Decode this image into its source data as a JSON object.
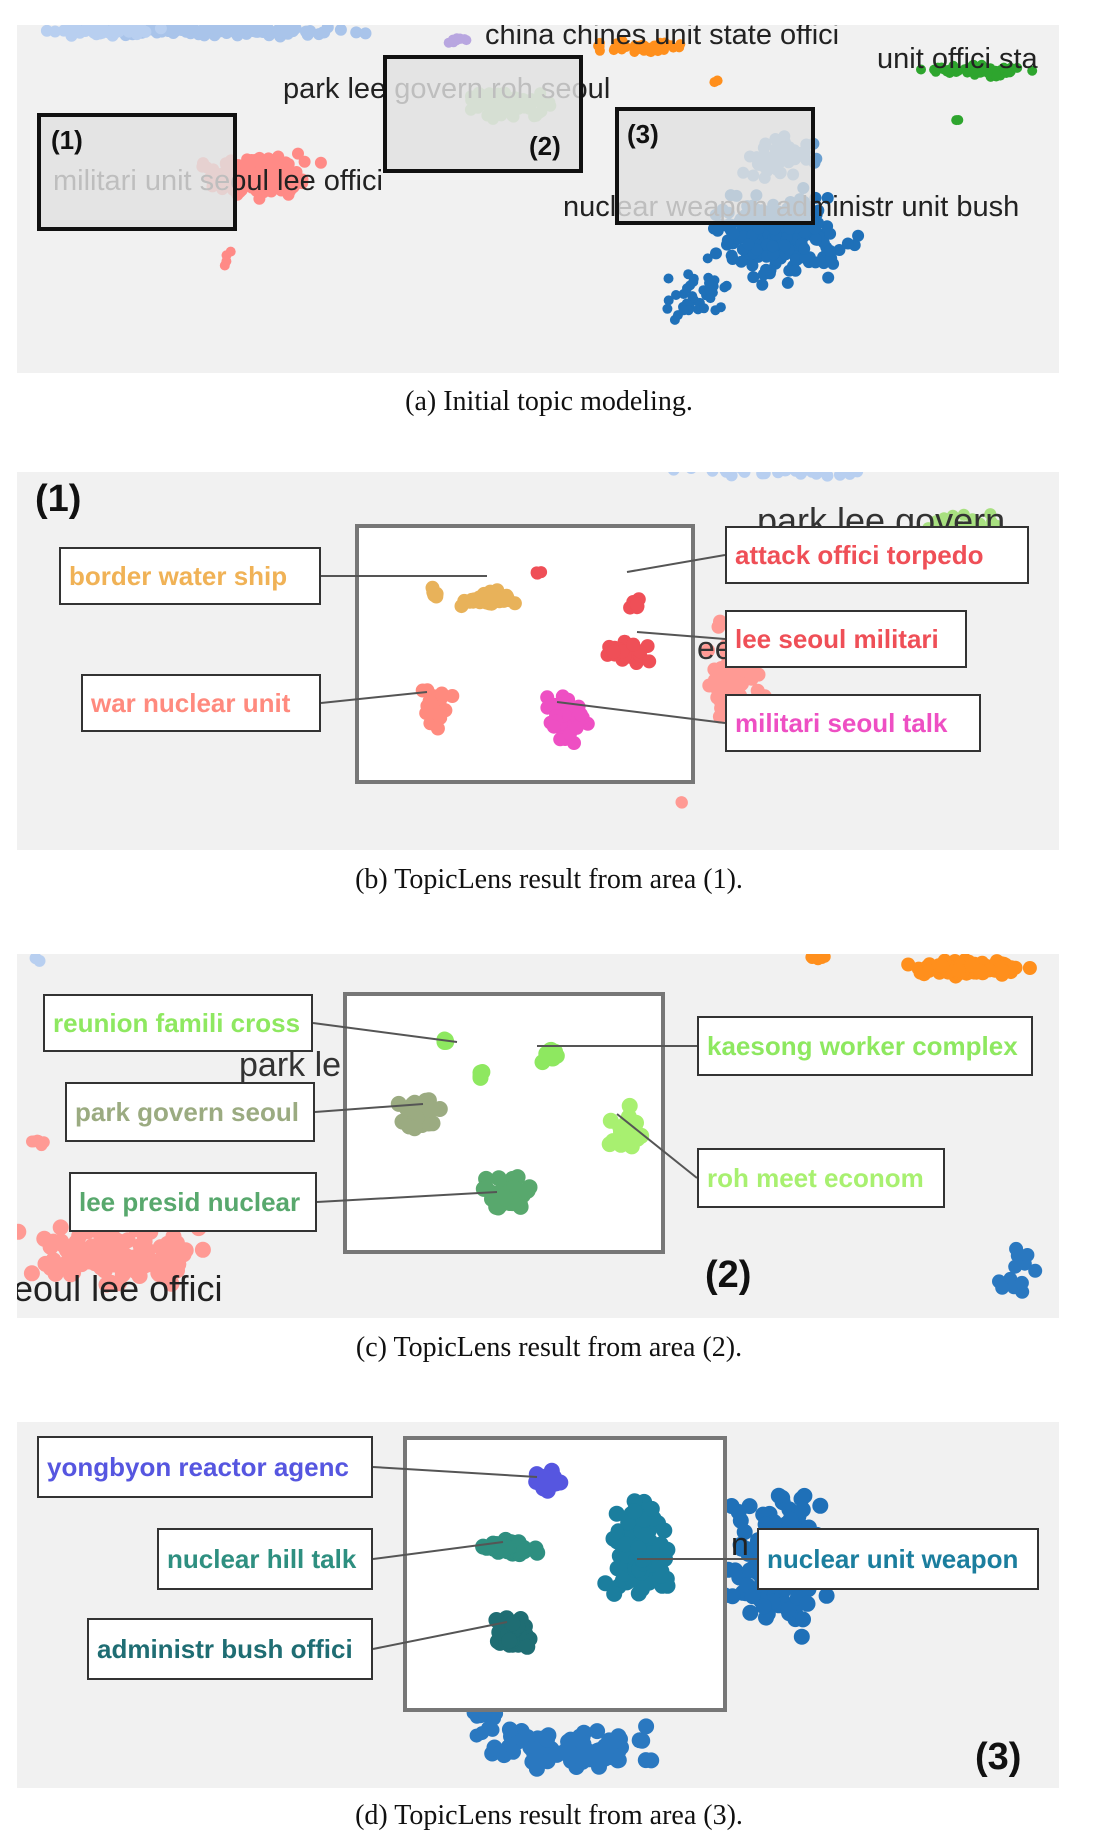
{
  "panels": {
    "a": {
      "caption": "(a) Initial topic modeling.",
      "topic_labels": {
        "china": "china chines unit state offici",
        "unit": "unit offici sta",
        "park": "park lee govern roh seoul",
        "militari": "militari unit seoul lee offici",
        "nuclear": "nuclear weapon administr unit bush"
      },
      "areas": [
        {
          "label": "(1)"
        },
        {
          "label": "(2)"
        },
        {
          "label": "(3)"
        }
      ]
    },
    "b": {
      "caption": "(b) TopicLens result from area (1).",
      "area_label": "(1)",
      "bg_text": [
        "park lee govern",
        "ee"
      ],
      "topics": [
        {
          "label": "border water ship",
          "color": "#f0b256"
        },
        {
          "label": "war nuclear unit",
          "color": "#ff8a7e"
        },
        {
          "label": "attack offici torpedo",
          "color": "#ef4f57"
        },
        {
          "label": "lee seoul militari",
          "color": "#ef4f57"
        },
        {
          "label": "militari seoul talk",
          "color": "#ee4fc3"
        }
      ]
    },
    "c": {
      "caption": "(c) TopicLens result from area (2).",
      "area_label": "(2)",
      "bg_text": [
        "park le",
        "eoul lee offici"
      ],
      "topics": [
        {
          "label": "reunion famili cross",
          "color": "#8ee860"
        },
        {
          "label": "park govern seoul",
          "color": "#9bab81"
        },
        {
          "label": "lee presid nuclear",
          "color": "#58a86d"
        },
        {
          "label": "kaesong worker complex",
          "color": "#8ee860"
        },
        {
          "label": "roh meet econom",
          "color": "#a8f070"
        }
      ]
    },
    "d": {
      "caption": "(d) TopicLens result from area (3).",
      "area_label": "(3)",
      "bg_text": [
        "n"
      ],
      "topics": [
        {
          "label": "yongbyon reactor agenc",
          "color": "#5656e0"
        },
        {
          "label": "nuclear hill talk",
          "color": "#2e8f80"
        },
        {
          "label": "administr bush offici",
          "color": "#1f6d73"
        },
        {
          "label": "nuclear unit weapon",
          "color": "#1b7e9e"
        }
      ]
    }
  }
}
